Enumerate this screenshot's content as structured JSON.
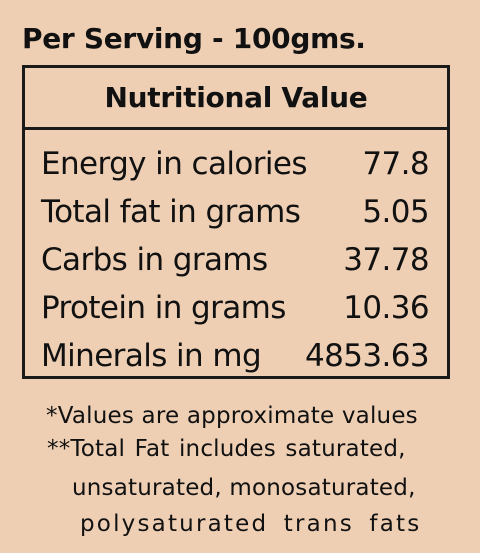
{
  "heading": "Per Serving - 100gms.",
  "panel": {
    "title": "Nutritional Value",
    "rows": [
      {
        "label": "Energy in calories",
        "value": "77.8"
      },
      {
        "label": "Total fat in grams",
        "value": "5.05"
      },
      {
        "label": "Carbs in grams",
        "value": "37.78"
      },
      {
        "label": "Protein in grams",
        "value": "10.36"
      },
      {
        "label": "Minerals in mg",
        "value": "4853.63"
      }
    ]
  },
  "notes": [
    "*Values are approximate values",
    "**Total Fat includes saturated,",
    "unsaturated, monosaturated,",
    "polysaturated trans fats"
  ]
}
